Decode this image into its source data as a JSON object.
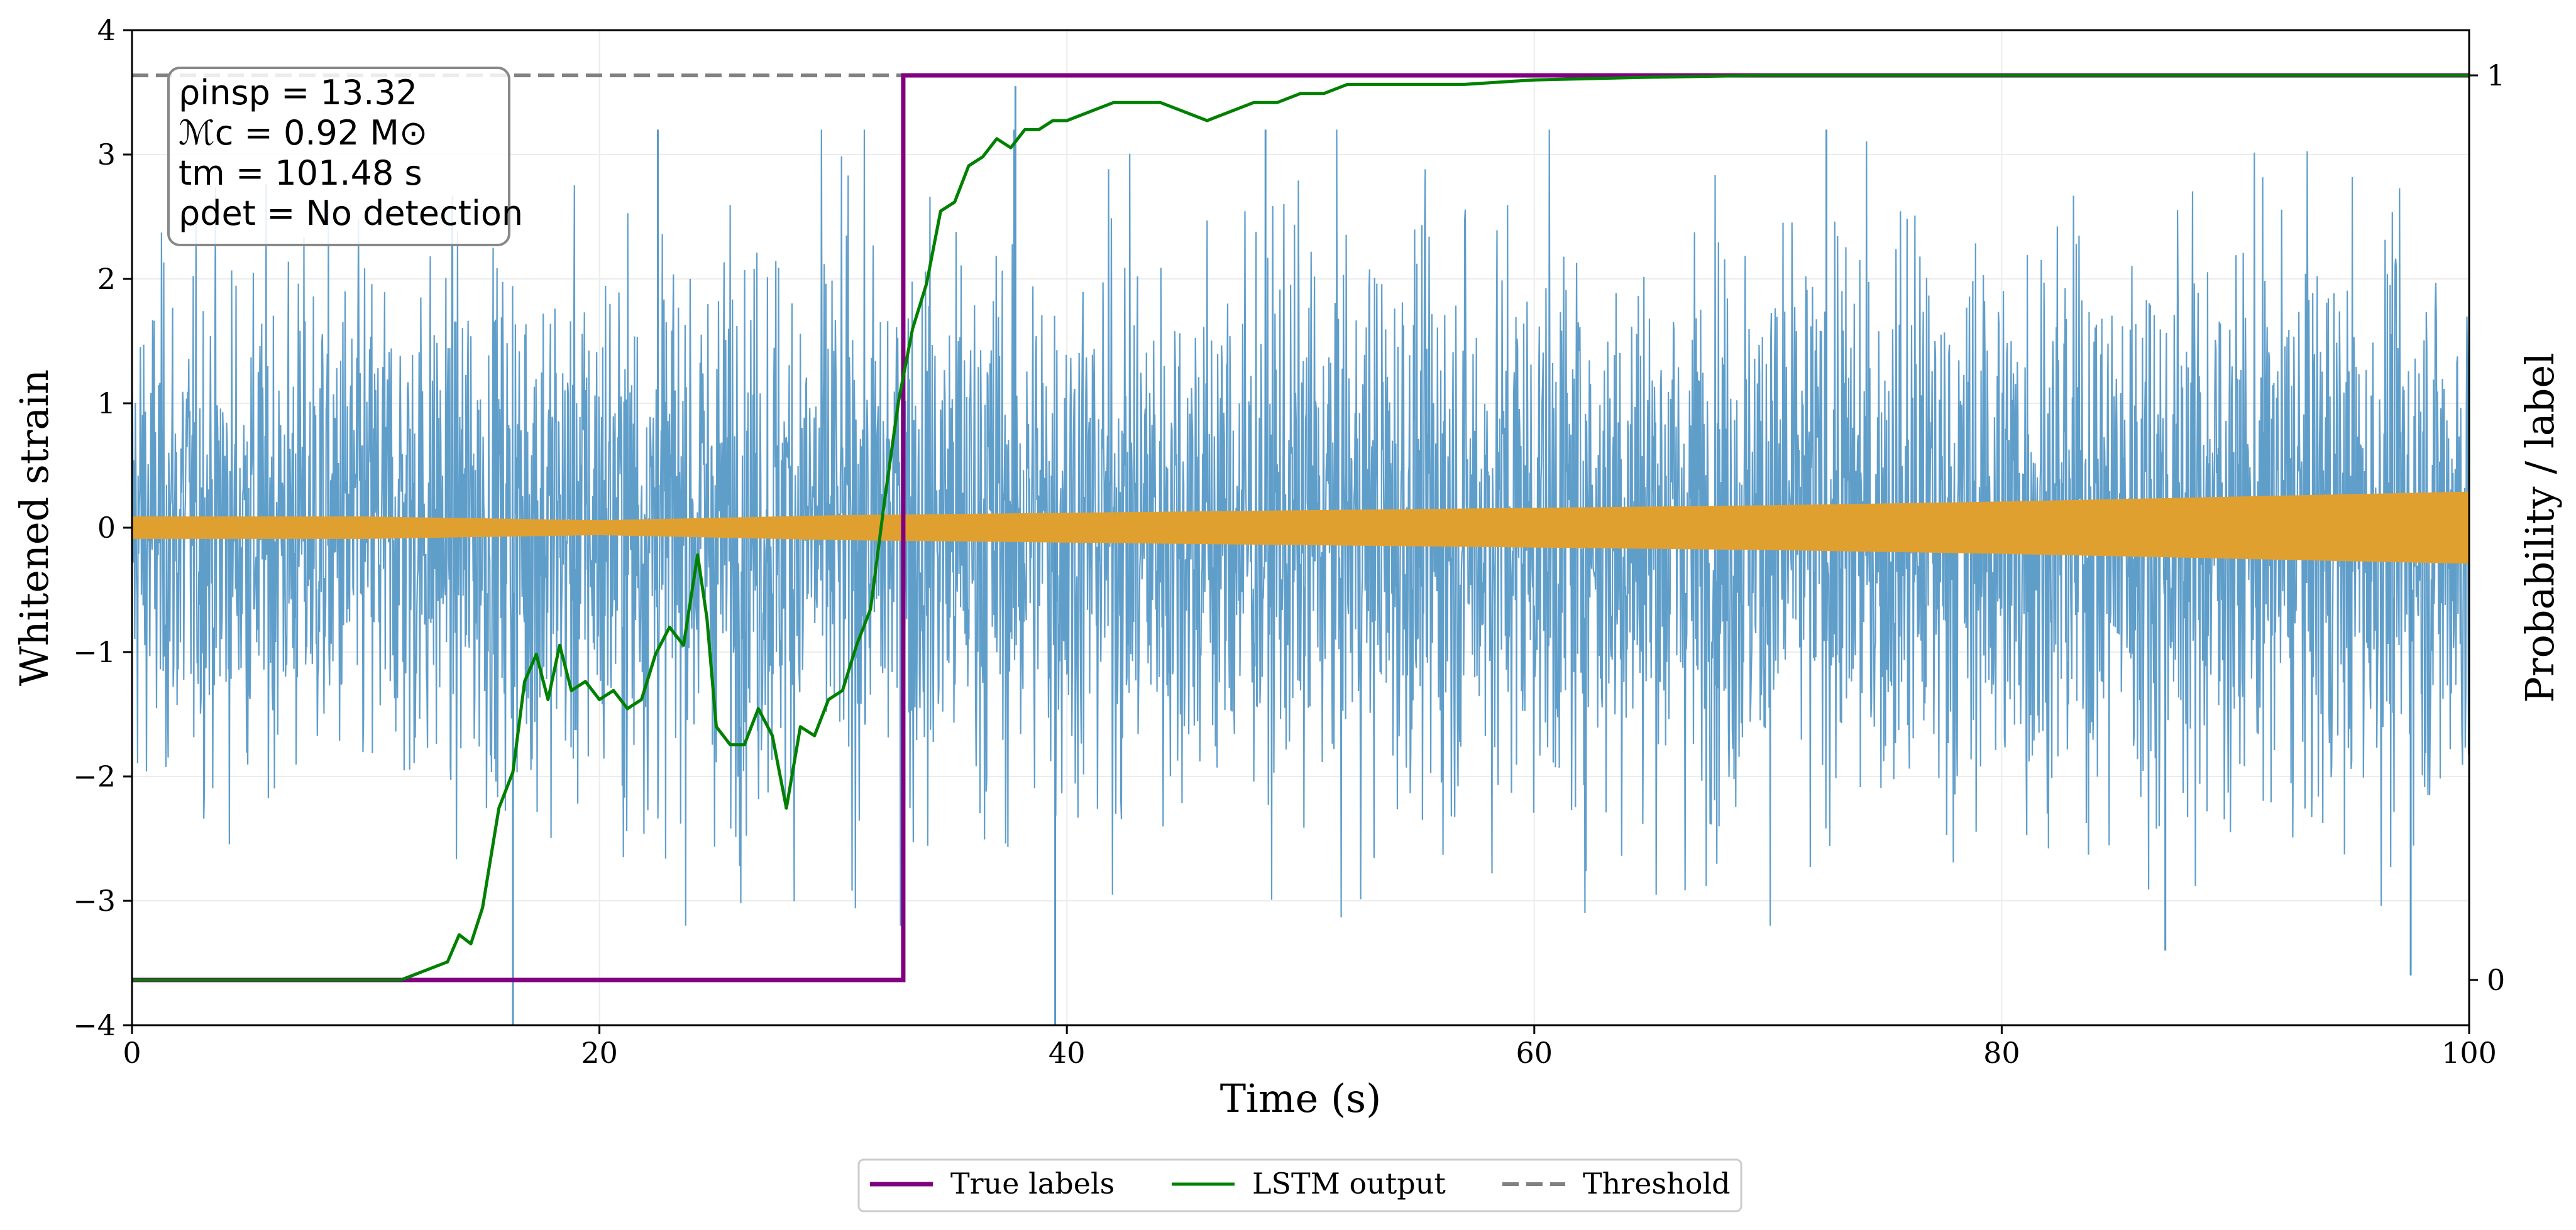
{
  "chart_data": {
    "type": "line",
    "xlabel": "Time (s)",
    "ylabel_left": "Whitened strain",
    "ylabel_right": "Probability / label",
    "xlim": [
      0,
      100
    ],
    "ylim_left": [
      -4,
      4
    ],
    "ylim_right": [
      -0.05,
      1.05
    ],
    "x_ticks": [
      0,
      20,
      40,
      60,
      80,
      100
    ],
    "x_tick_labels": [
      "0",
      "20",
      "40",
      "60",
      "80",
      "100"
    ],
    "y_left_ticks": [
      -4,
      -3,
      -2,
      -1,
      0,
      1,
      2,
      3,
      4
    ],
    "y_left_tick_labels": [
      "−4",
      "−3",
      "−2",
      "−1",
      "0",
      "1",
      "2",
      "3",
      "4"
    ],
    "y_right_ticks": [
      0,
      1
    ],
    "y_right_tick_labels": [
      "0",
      "1"
    ],
    "grid": true,
    "legend_position": "bottom-center",
    "annotation": {
      "rho_insp": "ρinsp = 13.32",
      "chirp_mass": "ℳc = 0.92 M⊙",
      "t_m": "tm = 101.48 s",
      "rho_det": "ρdet = No detection"
    },
    "series": [
      {
        "name": "True labels",
        "axis": "right",
        "color": "#800080",
        "style": "step",
        "x": [
          0,
          33.0,
          33.0,
          100
        ],
        "y": [
          0,
          0,
          1,
          1
        ]
      },
      {
        "name": "LSTM output",
        "axis": "right",
        "color": "#008000",
        "x": [
          0,
          11.5,
          12.5,
          13.5,
          14.0,
          14.5,
          15.0,
          15.7,
          16.3,
          16.8,
          17.3,
          17.8,
          18.3,
          18.8,
          19.4,
          20.0,
          20.6,
          21.2,
          21.8,
          22.4,
          23.0,
          23.6,
          24.2,
          24.6,
          25.0,
          25.6,
          26.2,
          26.8,
          27.4,
          28.0,
          28.6,
          29.2,
          29.8,
          30.4,
          31.0,
          31.6,
          32.2,
          32.8,
          33.4,
          34.0,
          34.6,
          35.2,
          35.8,
          36.4,
          37.0,
          37.6,
          38.2,
          38.8,
          39.4,
          40.0,
          41.0,
          42.0,
          43.0,
          44.0,
          45.0,
          46.0,
          47.0,
          48.0,
          49.0,
          50.0,
          51.0,
          52.0,
          53.0,
          55.0,
          57.0,
          60.0,
          65.0,
          70.0,
          80.0,
          90.0,
          100.0
        ],
        "y": [
          0.0,
          0.0,
          0.01,
          0.02,
          0.05,
          0.04,
          0.08,
          0.19,
          0.23,
          0.33,
          0.36,
          0.31,
          0.37,
          0.32,
          0.33,
          0.31,
          0.32,
          0.3,
          0.31,
          0.36,
          0.39,
          0.37,
          0.47,
          0.4,
          0.28,
          0.26,
          0.26,
          0.3,
          0.27,
          0.19,
          0.28,
          0.27,
          0.31,
          0.32,
          0.37,
          0.41,
          0.53,
          0.64,
          0.72,
          0.77,
          0.85,
          0.86,
          0.9,
          0.91,
          0.93,
          0.92,
          0.94,
          0.94,
          0.95,
          0.95,
          0.96,
          0.97,
          0.97,
          0.97,
          0.96,
          0.95,
          0.96,
          0.97,
          0.97,
          0.98,
          0.98,
          0.99,
          0.99,
          0.99,
          0.99,
          0.995,
          0.998,
          1.0,
          1.0,
          1.0,
          1.0
        ]
      },
      {
        "name": "Threshold",
        "axis": "right",
        "color": "#808080",
        "style": "dashed",
        "y_value": 1.0
      },
      {
        "axis": "left",
        "color": "#5799c7",
        "style": "noise",
        "x_range": [
          0,
          100
        ],
        "amplitude_envelope": [
          {
            "x": 0,
            "y": [
              -2.5,
              2.5
            ]
          },
          {
            "x": 30,
            "y": [
              -2.9,
              2.9
            ]
          },
          {
            "x": 100,
            "y": [
              -2.9,
              2.9
            ]
          }
        ],
        "spikes": [
          {
            "x": 16.3,
            "y": -4.0
          },
          {
            "x": 22.5,
            "y": 3.2
          },
          {
            "x": 37.8,
            "y": 3.55
          },
          {
            "x": 39.5,
            "y": -4.0
          },
          {
            "x": 48.5,
            "y": 3.2
          },
          {
            "x": 72.5,
            "y": 3.2
          },
          {
            "x": 87.0,
            "y": -3.4
          },
          {
            "x": 97.5,
            "y": -3.6
          }
        ]
      },
      {
        "axis": "left",
        "color": "#e0a030",
        "style": "chirp-envelope",
        "x": [
          0,
          10,
          20,
          30,
          40,
          50,
          60,
          70,
          80,
          90,
          100
        ],
        "upper": [
          0.09,
          0.09,
          0.06,
          0.1,
          0.12,
          0.14,
          0.16,
          0.18,
          0.21,
          0.25,
          0.29
        ],
        "lower": [
          -0.09,
          -0.09,
          -0.06,
          -0.1,
          -0.12,
          -0.14,
          -0.16,
          -0.18,
          -0.21,
          -0.25,
          -0.29
        ]
      }
    ]
  }
}
